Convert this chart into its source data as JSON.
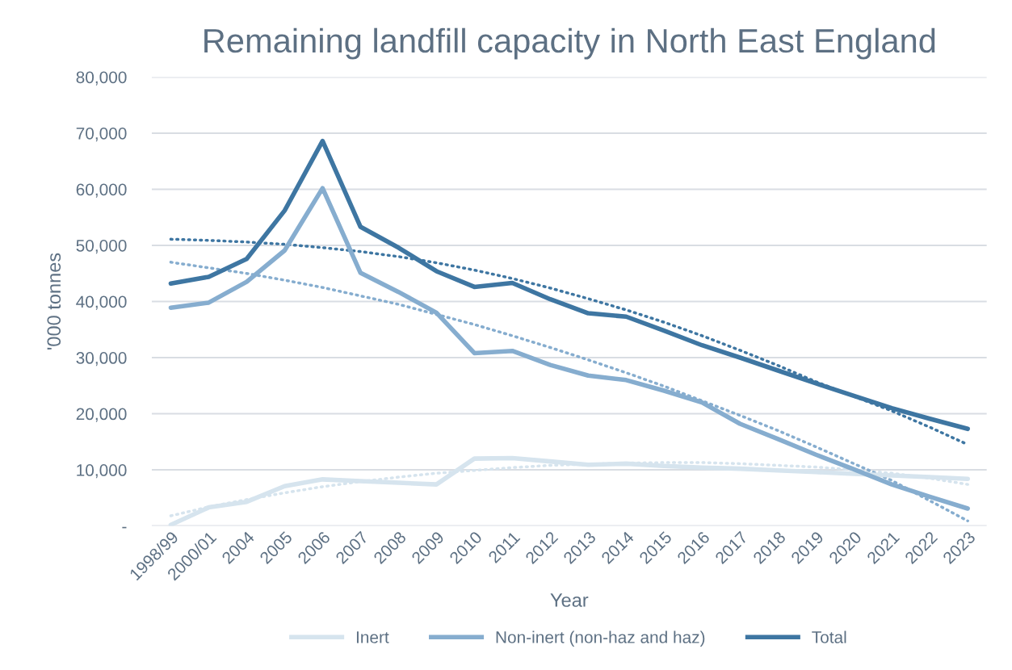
{
  "chart_data": {
    "type": "line",
    "title": "Remaining landfill capacity in North East England",
    "xlabel": "Year",
    "ylabel": "'000 tonnes",
    "categories": [
      "1998/99",
      "2000/01",
      "2004",
      "2005",
      "2006",
      "2007",
      "2008",
      "2009",
      "2010",
      "2011",
      "2012",
      "2013",
      "2014",
      "2015",
      "2016",
      "2017",
      "2018",
      "2019",
      "2020",
      "2021",
      "2022",
      "2023"
    ],
    "series": [
      {
        "name": "Inert",
        "color": "#d6e4ee",
        "values": [
          200,
          3300,
          4300,
          7100,
          8300,
          8000,
          7700,
          7400,
          12000,
          12100,
          11500,
          10900,
          11100,
          10700,
          10400,
          10200,
          9900,
          9600,
          9300,
          9000,
          8700,
          8400
        ]
      },
      {
        "name": "Non-inert (non-haz and haz)",
        "color": "#86adcf",
        "values": [
          38900,
          39800,
          43500,
          49100,
          60200,
          45100,
          41700,
          38000,
          30800,
          31200,
          28700,
          26800,
          26000,
          24100,
          22000,
          18200,
          15500,
          12700,
          10100,
          7400,
          5200,
          3100
        ]
      },
      {
        "name": "Total",
        "color": "#3e76a2",
        "values": [
          43200,
          44400,
          47600,
          56200,
          68600,
          53300,
          49600,
          45400,
          42600,
          43300,
          40400,
          37900,
          37300,
          34800,
          32200,
          30000,
          27700,
          25400,
          23200,
          21000,
          19100,
          17300
        ]
      },
      {
        "color": "#d6e4ee",
        "line_style": "dotted",
        "values": [
          1800,
          3400,
          4700,
          5900,
          7000,
          7900,
          8700,
          9400,
          9900,
          10400,
          10800,
          11000,
          11200,
          11300,
          11300,
          11100,
          10800,
          10500,
          10000,
          9400,
          8500,
          7400
        ]
      },
      {
        "color": "#86adcf",
        "line_style": "dotted",
        "values": [
          47000,
          46000,
          45000,
          43800,
          42500,
          41000,
          39500,
          37700,
          35900,
          33900,
          31800,
          29600,
          27300,
          24900,
          22300,
          19700,
          17000,
          14100,
          11100,
          8100,
          4500,
          900
        ]
      },
      {
        "color": "#3e76a2",
        "line_style": "dotted",
        "values": [
          51100,
          50900,
          50600,
          50200,
          49600,
          48900,
          48000,
          46900,
          45600,
          44100,
          42400,
          40500,
          38500,
          36300,
          33900,
          31300,
          28600,
          25700,
          23100,
          20500,
          17600,
          14500
        ]
      }
    ],
    "ylim": [
      0,
      80000
    ],
    "yticks": [
      {
        "value": 0,
        "label": "-"
      },
      {
        "value": 10000,
        "label": "10,000"
      },
      {
        "value": 20000,
        "label": "20,000"
      },
      {
        "value": 30000,
        "label": "30,000"
      },
      {
        "value": 40000,
        "label": "40,000"
      },
      {
        "value": 50000,
        "label": "50,000"
      },
      {
        "value": 60000,
        "label": "60,000"
      },
      {
        "value": 70000,
        "label": "70,000"
      },
      {
        "value": 80000,
        "label": "80,000"
      }
    ],
    "grid": "y",
    "legend": "bottom",
    "line_style": "solid",
    "marker": "none"
  }
}
